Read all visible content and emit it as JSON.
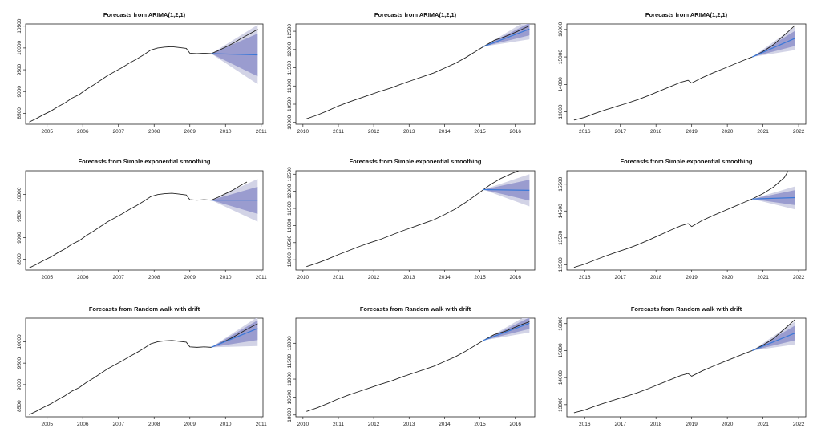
{
  "chart_data": [
    {
      "type": "line",
      "title": "Forecasts from ARIMA(1,2,1)",
      "xlim": [
        2004.4,
        2011.05
      ],
      "ylim": [
        8250,
        10550
      ],
      "xticks": [
        2005,
        2006,
        2007,
        2008,
        2009,
        2010,
        2011
      ],
      "yticks": [
        8500,
        9000,
        9500,
        10000,
        10500
      ],
      "history": {
        "x": [
          2004.5,
          2004.7,
          2004.9,
          2005.1,
          2005.3,
          2005.5,
          2005.7,
          2005.9,
          2006.1,
          2006.3,
          2006.5,
          2006.7,
          2006.9,
          2007.1,
          2007.3,
          2007.5,
          2007.7,
          2007.9,
          2008.1,
          2008.3,
          2008.5,
          2008.7,
          2008.9,
          2009.0,
          2009.2,
          2009.4,
          2009.6
        ],
        "y": [
          8300,
          8380,
          8470,
          8550,
          8650,
          8740,
          8850,
          8930,
          9050,
          9150,
          9260,
          9370,
          9460,
          9550,
          9650,
          9740,
          9840,
          9950,
          10000,
          10020,
          10030,
          10010,
          9990,
          9880,
          9870,
          9880,
          9870
        ]
      },
      "actual": {
        "x": [
          2009.6,
          2009.8,
          2010.0,
          2010.2,
          2010.4,
          2010.6,
          2010.8,
          2010.9
        ],
        "y": [
          9870,
          9940,
          10020,
          10100,
          10200,
          10290,
          10380,
          10430
        ]
      },
      "forecast": {
        "x": [
          2009.6,
          2010.9
        ],
        "mean": [
          9870,
          9840
        ],
        "lo80": [
          9870,
          9350
        ],
        "hi80": [
          9870,
          10330
        ],
        "lo95": [
          9870,
          9170
        ],
        "hi95": [
          9870,
          10530
        ]
      }
    },
    {
      "type": "line",
      "title": "Forecasts from ARIMA(1,2,1)",
      "xlim": [
        2009.8,
        2016.55
      ],
      "ylim": [
        9950,
        12700
      ],
      "xticks": [
        2010,
        2011,
        2012,
        2013,
        2014,
        2015,
        2016
      ],
      "yticks": [
        10000,
        10500,
        11000,
        11500,
        12000,
        12500
      ],
      "history": {
        "x": [
          2010.1,
          2010.4,
          2010.7,
          2011.0,
          2011.3,
          2011.6,
          2011.9,
          2012.2,
          2012.5,
          2012.8,
          2013.1,
          2013.4,
          2013.7,
          2014.0,
          2014.3,
          2014.6,
          2014.9,
          2015.1
        ],
        "y": [
          10100,
          10200,
          10320,
          10450,
          10560,
          10660,
          10760,
          10860,
          10950,
          11060,
          11160,
          11260,
          11360,
          11490,
          11620,
          11780,
          11960,
          12080
        ]
      },
      "actual": {
        "x": [
          2015.1,
          2015.4,
          2015.7,
          2016.0,
          2016.2,
          2016.4
        ],
        "y": [
          12080,
          12250,
          12350,
          12470,
          12560,
          12650
        ]
      },
      "forecast": {
        "x": [
          2015.1,
          2016.4
        ],
        "mean": [
          12080,
          12560
        ],
        "lo80": [
          12080,
          12390
        ],
        "hi80": [
          12080,
          12730
        ],
        "lo95": [
          12080,
          12280
        ],
        "hi95": [
          12080,
          12840
        ]
      }
    },
    {
      "type": "line",
      "title": "Forecasts from ARIMA(1,2,1)",
      "xlim": [
        2015.5,
        2022.2
      ],
      "ylim": [
        12550,
        16200
      ],
      "xticks": [
        2016,
        2017,
        2018,
        2019,
        2020,
        2021,
        2022
      ],
      "yticks": [
        13000,
        14000,
        15000,
        16000
      ],
      "history": {
        "x": [
          2015.7,
          2016.0,
          2016.3,
          2016.6,
          2016.9,
          2017.2,
          2017.5,
          2017.8,
          2018.1,
          2018.4,
          2018.7,
          2018.9,
          2019.0,
          2019.3,
          2019.6,
          2019.9,
          2020.2,
          2020.5,
          2020.7
        ],
        "y": [
          12700,
          12800,
          12950,
          13080,
          13200,
          13320,
          13450,
          13600,
          13760,
          13920,
          14080,
          14150,
          14050,
          14250,
          14420,
          14580,
          14740,
          14900,
          15000
        ]
      },
      "actual": {
        "x": [
          2020.7,
          2021.0,
          2021.3,
          2021.6,
          2021.9
        ],
        "y": [
          15000,
          15200,
          15450,
          15800,
          16150
        ]
      },
      "forecast": {
        "x": [
          2020.7,
          2021.9
        ],
        "mean": [
          15000,
          15680
        ],
        "lo80": [
          15000,
          15400
        ],
        "hi80": [
          15000,
          15950
        ],
        "lo95": [
          15000,
          15250
        ],
        "hi95": [
          15000,
          16100
        ]
      }
    },
    {
      "type": "line",
      "title": "Forecasts from Simple exponential smoothing",
      "xlim": [
        2004.4,
        2011.05
      ],
      "ylim": [
        8250,
        10550
      ],
      "xticks": [
        2005,
        2006,
        2007,
        2008,
        2009,
        2010,
        2011
      ],
      "yticks": [
        8500,
        9000,
        9500,
        10000
      ],
      "history": {
        "x": [
          2004.5,
          2004.7,
          2004.9,
          2005.1,
          2005.3,
          2005.5,
          2005.7,
          2005.9,
          2006.1,
          2006.3,
          2006.5,
          2006.7,
          2006.9,
          2007.1,
          2007.3,
          2007.5,
          2007.7,
          2007.9,
          2008.1,
          2008.3,
          2008.5,
          2008.7,
          2008.9,
          2009.0,
          2009.2,
          2009.4,
          2009.6
        ],
        "y": [
          8300,
          8380,
          8470,
          8550,
          8650,
          8740,
          8850,
          8930,
          9050,
          9150,
          9260,
          9370,
          9460,
          9550,
          9650,
          9740,
          9840,
          9950,
          10000,
          10020,
          10030,
          10010,
          9990,
          9880,
          9870,
          9880,
          9870
        ]
      },
      "actual": {
        "x": [
          2009.6,
          2009.8,
          2010.0,
          2010.2,
          2010.4,
          2010.6
        ],
        "y": [
          9870,
          9940,
          10020,
          10100,
          10200,
          10290
        ]
      },
      "forecast": {
        "x": [
          2009.6,
          2010.9
        ],
        "mean": [
          9870,
          9870
        ],
        "lo80": [
          9870,
          9550
        ],
        "hi80": [
          9870,
          10180
        ],
        "lo95": [
          9870,
          9370
        ],
        "hi95": [
          9870,
          10360
        ]
      }
    },
    {
      "type": "line",
      "title": "Forecasts from Simple exponential smoothing",
      "xlim": [
        2009.8,
        2016.55
      ],
      "ylim": [
        9700,
        12600
      ],
      "xticks": [
        2010,
        2011,
        2012,
        2013,
        2014,
        2015,
        2016
      ],
      "yticks": [
        10000,
        10500,
        11000,
        11500,
        12000,
        12500
      ],
      "history": {
        "x": [
          2010.1,
          2010.4,
          2010.7,
          2011.0,
          2011.3,
          2011.6,
          2011.9,
          2012.2,
          2012.5,
          2012.8,
          2013.1,
          2013.4,
          2013.7,
          2014.0,
          2014.3,
          2014.6,
          2014.9,
          2015.1
        ],
        "y": [
          9800,
          9900,
          10020,
          10150,
          10270,
          10390,
          10500,
          10600,
          10720,
          10840,
          10950,
          11060,
          11170,
          11320,
          11480,
          11680,
          11900,
          12050
        ]
      },
      "actual": {
        "x": [
          2015.1,
          2015.3,
          2015.6,
          2015.9,
          2016.1
        ],
        "y": [
          12050,
          12200,
          12380,
          12520,
          12600
        ]
      },
      "forecast": {
        "x": [
          2015.1,
          2016.4
        ],
        "mean": [
          12050,
          12030
        ],
        "lo80": [
          12050,
          11730
        ],
        "hi80": [
          12050,
          12340
        ],
        "lo95": [
          12050,
          11560
        ],
        "hi95": [
          12050,
          12500
        ]
      }
    },
    {
      "type": "line",
      "title": "Forecasts from Simple exponential smoothing",
      "xlim": [
        2015.5,
        2022.2
      ],
      "ylim": [
        12300,
        16000
      ],
      "xticks": [
        2016,
        2017,
        2018,
        2019,
        2020,
        2021,
        2022
      ],
      "yticks": [
        12500,
        13500,
        14500,
        15500
      ],
      "history": {
        "x": [
          2015.7,
          2016.0,
          2016.3,
          2016.6,
          2016.9,
          2017.2,
          2017.5,
          2017.8,
          2018.1,
          2018.4,
          2018.7,
          2018.9,
          2019.0,
          2019.3,
          2019.6,
          2019.9,
          2020.2,
          2020.5,
          2020.7
        ],
        "y": [
          12400,
          12520,
          12680,
          12830,
          12970,
          13100,
          13250,
          13420,
          13600,
          13780,
          13950,
          14030,
          13920,
          14150,
          14330,
          14500,
          14670,
          14840,
          14950
        ]
      },
      "actual": {
        "x": [
          2020.7,
          2021.0,
          2021.3,
          2021.6,
          2021.7
        ],
        "y": [
          14950,
          15150,
          15400,
          15750,
          15980
        ]
      },
      "forecast": {
        "x": [
          2020.7,
          2021.9
        ],
        "mean": [
          14950,
          15000
        ],
        "lo80": [
          14950,
          14720
        ],
        "hi80": [
          14950,
          15280
        ],
        "lo95": [
          14950,
          14560
        ],
        "hi95": [
          14950,
          15420
        ]
      }
    },
    {
      "type": "line",
      "title": "Forecasts from Random walk with drift",
      "xlim": [
        2004.4,
        2011.05
      ],
      "ylim": [
        8250,
        10550
      ],
      "xticks": [
        2005,
        2006,
        2007,
        2008,
        2009,
        2010,
        2011
      ],
      "yticks": [
        8500,
        9000,
        9500,
        10000
      ],
      "history": {
        "x": [
          2004.5,
          2004.7,
          2004.9,
          2005.1,
          2005.3,
          2005.5,
          2005.7,
          2005.9,
          2006.1,
          2006.3,
          2006.5,
          2006.7,
          2006.9,
          2007.1,
          2007.3,
          2007.5,
          2007.7,
          2007.9,
          2008.1,
          2008.3,
          2008.5,
          2008.7,
          2008.9,
          2009.0,
          2009.2,
          2009.4,
          2009.6
        ],
        "y": [
          8300,
          8380,
          8470,
          8550,
          8650,
          8740,
          8850,
          8930,
          9050,
          9150,
          9260,
          9370,
          9460,
          9550,
          9650,
          9740,
          9840,
          9950,
          10000,
          10020,
          10030,
          10010,
          9990,
          9880,
          9870,
          9880,
          9870
        ]
      },
      "actual": {
        "x": [
          2009.6,
          2009.8,
          2010.0,
          2010.2,
          2010.4,
          2010.6,
          2010.8,
          2010.9
        ],
        "y": [
          9870,
          9940,
          10020,
          10100,
          10200,
          10290,
          10380,
          10420
        ]
      },
      "forecast": {
        "x": [
          2009.6,
          2010.9
        ],
        "mean": [
          9870,
          10310
        ],
        "lo80": [
          9870,
          10040
        ],
        "hi80": [
          9870,
          10500
        ],
        "lo95": [
          9870,
          9900
        ],
        "hi95": [
          9870,
          10580
        ]
      }
    },
    {
      "type": "line",
      "title": "Forecasts from Random walk with drift",
      "xlim": [
        2009.8,
        2016.55
      ],
      "ylim": [
        9950,
        12700
      ],
      "xticks": [
        2010,
        2011,
        2012,
        2013,
        2014,
        2015,
        2016
      ],
      "yticks": [
        10000,
        10500,
        11000,
        11500,
        12000
      ],
      "history": {
        "x": [
          2010.1,
          2010.4,
          2010.7,
          2011.0,
          2011.3,
          2011.6,
          2011.9,
          2012.2,
          2012.5,
          2012.8,
          2013.1,
          2013.4,
          2013.7,
          2014.0,
          2014.3,
          2014.6,
          2014.9,
          2015.1
        ],
        "y": [
          10100,
          10200,
          10320,
          10450,
          10560,
          10660,
          10760,
          10860,
          10950,
          11060,
          11160,
          11260,
          11360,
          11490,
          11620,
          11780,
          11960,
          12080
        ]
      },
      "actual": {
        "x": [
          2015.1,
          2015.4,
          2015.7,
          2016.0,
          2016.2,
          2016.4
        ],
        "y": [
          12080,
          12240,
          12330,
          12450,
          12530,
          12600
        ]
      },
      "forecast": {
        "x": [
          2015.1,
          2016.4
        ],
        "mean": [
          12080,
          12560
        ],
        "lo80": [
          12080,
          12400
        ],
        "hi80": [
          12080,
          12720
        ],
        "lo95": [
          12080,
          12300
        ],
        "hi95": [
          12080,
          12820
        ]
      }
    },
    {
      "type": "line",
      "title": "Forecasts from Random walk with drift",
      "xlim": [
        2015.5,
        2022.2
      ],
      "ylim": [
        12550,
        16200
      ],
      "xticks": [
        2016,
        2017,
        2018,
        2019,
        2020,
        2021,
        2022
      ],
      "yticks": [
        13000,
        14000,
        15000,
        16000
      ],
      "history": {
        "x": [
          2015.7,
          2016.0,
          2016.3,
          2016.6,
          2016.9,
          2017.2,
          2017.5,
          2017.8,
          2018.1,
          2018.4,
          2018.7,
          2018.9,
          2019.0,
          2019.3,
          2019.6,
          2019.9,
          2020.2,
          2020.5,
          2020.7
        ],
        "y": [
          12700,
          12800,
          12950,
          13080,
          13200,
          13320,
          13450,
          13600,
          13760,
          13920,
          14080,
          14150,
          14050,
          14250,
          14420,
          14580,
          14740,
          14900,
          15000
        ]
      },
      "actual": {
        "x": [
          2020.7,
          2021.0,
          2021.3,
          2021.6,
          2021.9
        ],
        "y": [
          15000,
          15200,
          15450,
          15800,
          16150
        ]
      },
      "forecast": {
        "x": [
          2020.7,
          2021.9
        ],
        "mean": [
          15000,
          15650
        ],
        "lo80": [
          15000,
          15380
        ],
        "hi80": [
          15000,
          15930
        ],
        "lo95": [
          15000,
          15230
        ],
        "hi95": [
          15000,
          16080
        ]
      }
    }
  ],
  "colors": {
    "history_line": "#222222",
    "forecast_mean": "#3a78d8",
    "band80": "#9a9ccf",
    "band95": "#d2d3e6",
    "axis": "#222222"
  }
}
